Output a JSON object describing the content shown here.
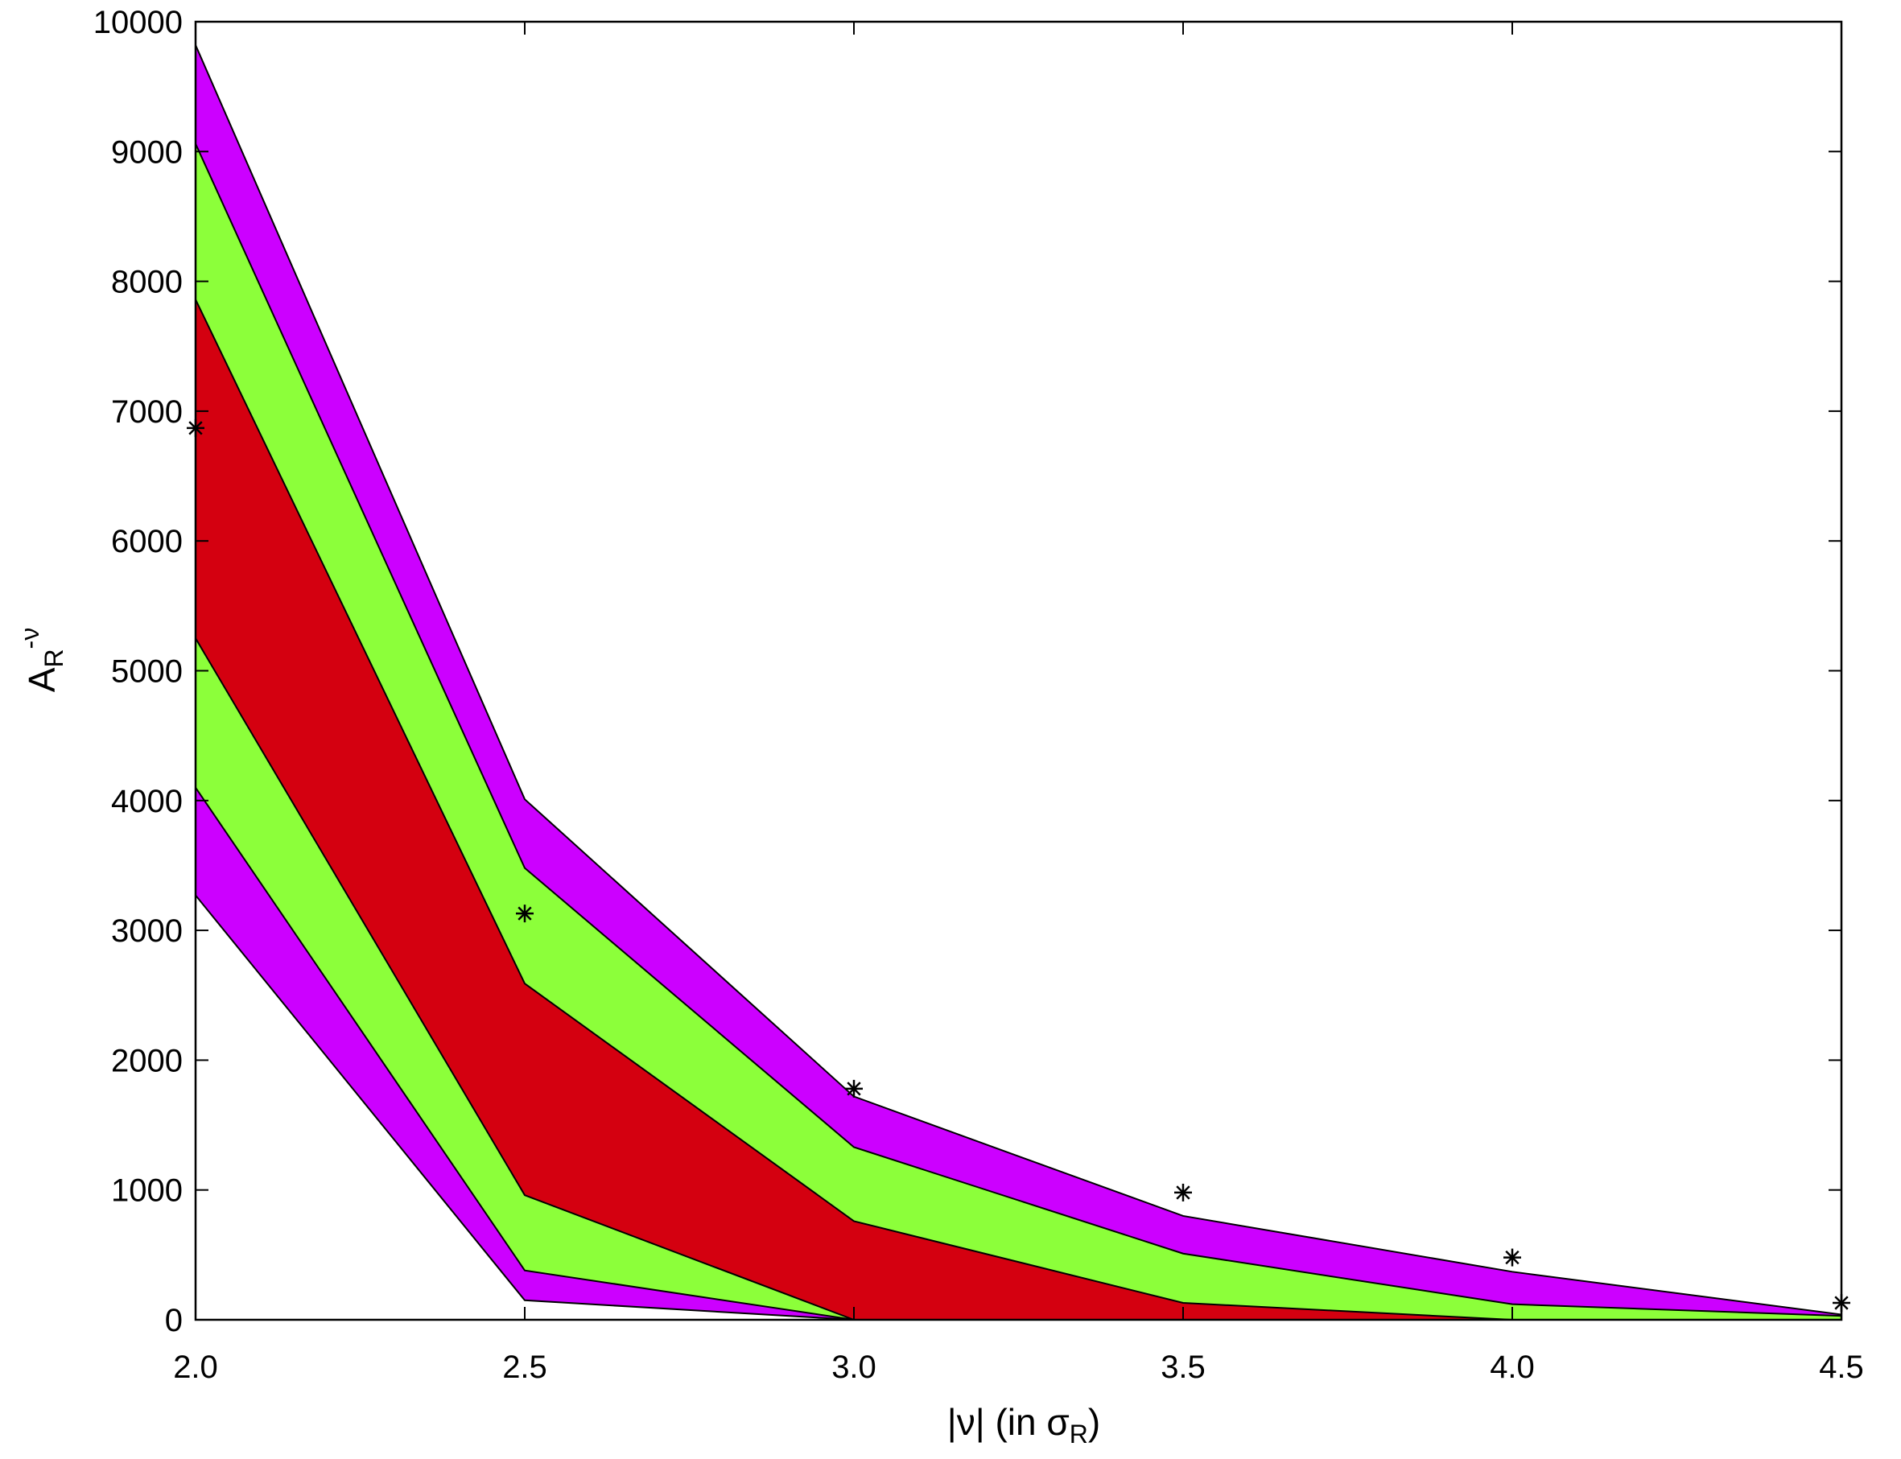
{
  "chart_data": {
    "type": "area",
    "x": [
      2.0,
      2.5,
      3.0,
      3.5,
      4.0,
      4.5
    ],
    "xlim": [
      2.0,
      4.5
    ],
    "ylim": [
      0,
      10000
    ],
    "xticks": [
      "2.0",
      "2.5",
      "3.0",
      "3.5",
      "4.0",
      "4.5"
    ],
    "yticks": [
      "0",
      "1000",
      "2000",
      "3000",
      "4000",
      "5000",
      "6000",
      "7000",
      "8000",
      "9000",
      "10000"
    ],
    "xlabel": {
      "main": "|ν| (in σ",
      "sub": "R",
      "tail": ")"
    },
    "ylabel": {
      "main": "A",
      "sub": "R",
      "sup": "-ν"
    },
    "grid": false,
    "bands": [
      {
        "color": "#cc00ff",
        "upper": [
          9820,
          4010,
          1720,
          800,
          370,
          40
        ],
        "lower": [
          3270,
          150,
          0,
          0,
          0,
          0
        ]
      },
      {
        "color": "#8cff3a",
        "upper": [
          9060,
          3480,
          1330,
          510,
          120,
          30
        ],
        "lower": [
          4100,
          380,
          0,
          0,
          0,
          0
        ]
      },
      {
        "color": "#d40010",
        "upper": [
          7860,
          2590,
          760,
          130,
          0,
          0
        ],
        "lower": [
          5250,
          960,
          0,
          0,
          0,
          0
        ]
      }
    ],
    "points": {
      "marker": "*",
      "x": [
        2.0,
        2.5,
        3.0,
        3.5,
        4.0,
        4.5
      ],
      "y": [
        6870,
        3130,
        1780,
        980,
        480,
        130
      ]
    }
  }
}
